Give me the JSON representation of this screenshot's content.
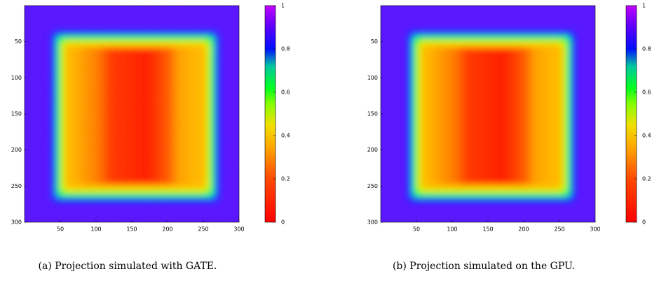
{
  "chart_data": [
    {
      "type": "heatmap",
      "xlim": [
        0,
        300
      ],
      "ylim": [
        0,
        300
      ],
      "xticks": [
        50,
        100,
        150,
        200,
        250,
        300
      ],
      "yticks": [
        50,
        100,
        150,
        200,
        250,
        300
      ],
      "colorbar": {
        "lim": [
          0,
          1
        ],
        "ticks": [
          0,
          0.2,
          0.4,
          0.6,
          0.8,
          1
        ]
      },
      "caption": "(a) Projection simulated with GATE."
    },
    {
      "type": "heatmap",
      "xlim": [
        0,
        300
      ],
      "ylim": [
        0,
        300
      ],
      "xticks": [
        50,
        100,
        150,
        200,
        250,
        300
      ],
      "yticks": [
        50,
        100,
        150,
        200,
        250,
        300
      ],
      "colorbar": {
        "lim": [
          0,
          1
        ],
        "ticks": [
          0,
          0.2,
          0.4,
          0.6,
          0.8,
          1
        ]
      },
      "caption": "(b) Projection simulated on the GPU."
    }
  ]
}
